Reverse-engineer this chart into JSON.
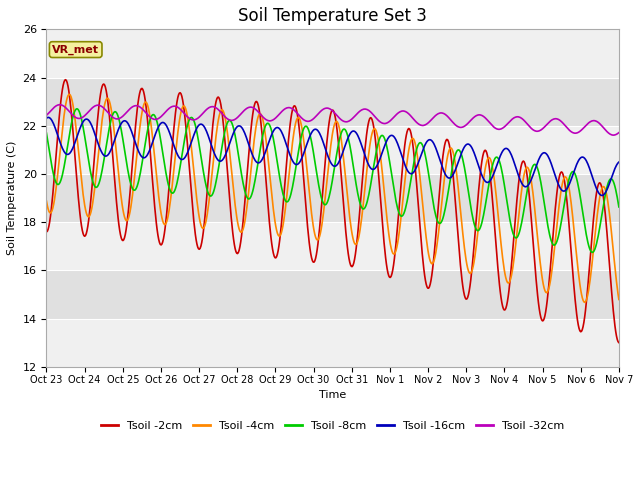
{
  "title": "Soil Temperature Set 3",
  "xlabel": "Time",
  "ylabel": "Soil Temperature (C)",
  "ylim": [
    12,
    26
  ],
  "yticks": [
    12,
    14,
    16,
    18,
    20,
    22,
    24,
    26
  ],
  "annotation": "VR_met",
  "series": [
    {
      "label": "Tsoil -2cm",
      "color": "#cc0000",
      "lw": 1.2
    },
    {
      "label": "Tsoil -4cm",
      "color": "#ff8800",
      "lw": 1.2
    },
    {
      "label": "Tsoil -8cm",
      "color": "#00cc00",
      "lw": 1.2
    },
    {
      "label": "Tsoil -16cm",
      "color": "#0000bb",
      "lw": 1.2
    },
    {
      "label": "Tsoil -32cm",
      "color": "#bb00bb",
      "lw": 1.2
    }
  ],
  "xtick_labels": [
    "Oct 23",
    "Oct 24",
    "Oct 25",
    "Oct 26",
    "Oct 27",
    "Oct 28",
    "Oct 29",
    "Oct 30",
    "Oct 31",
    "Nov 1",
    "Nov 2",
    "Nov 3",
    "Nov 4",
    "Nov 5",
    "Nov 6",
    "Nov 7"
  ],
  "title_fontsize": 12,
  "band_colors": [
    "#f0f0f0",
    "#e0e0e0"
  ],
  "fig_bg": "#ffffff",
  "plot_bg": "#f8f8f8"
}
